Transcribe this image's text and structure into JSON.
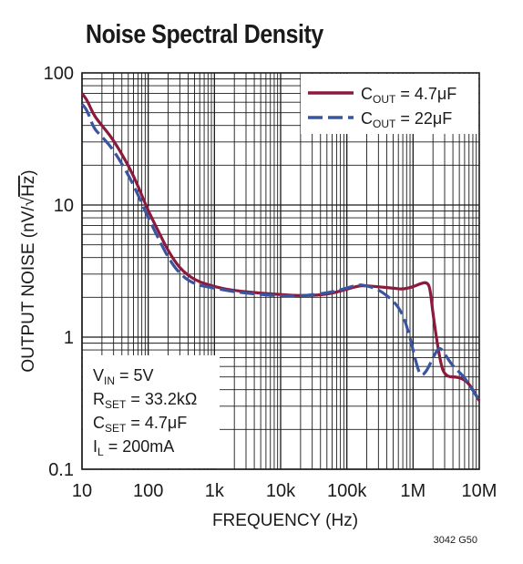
{
  "chart_data": {
    "type": "line",
    "title": "Noise Spectral Density",
    "xlabel": "FREQUENCY (Hz)",
    "ylabel_prefix": "OUTPUT NOISE (nV/",
    "ylabel_radicand": "Hz",
    "ylabel_suffix": ")",
    "x_scale": "log",
    "y_scale": "log",
    "xlim": [
      10,
      10000000
    ],
    "ylim": [
      0.1,
      100
    ],
    "grid": true,
    "x_ticks": [
      {
        "value": 10,
        "label": "10"
      },
      {
        "value": 100,
        "label": "100"
      },
      {
        "value": 1000,
        "label": "1k"
      },
      {
        "value": 10000,
        "label": "10k"
      },
      {
        "value": 100000,
        "label": "100k"
      },
      {
        "value": 1000000,
        "label": "1M"
      },
      {
        "value": 10000000,
        "label": "10M"
      }
    ],
    "y_ticks": [
      {
        "value": 0.1,
        "label": "0.1"
      },
      {
        "value": 1,
        "label": "1"
      },
      {
        "value": 10,
        "label": "10"
      },
      {
        "value": 100,
        "label": "100"
      }
    ],
    "legend_position": "top-right",
    "series": [
      {
        "legend_main": "C",
        "legend_sub": "OUT",
        "legend_rest": " = 4.7μF",
        "color": "#8b1a3c",
        "dash": "solid",
        "points": [
          [
            10,
            70
          ],
          [
            12,
            62
          ],
          [
            15,
            48
          ],
          [
            20,
            40
          ],
          [
            30,
            31
          ],
          [
            50,
            20
          ],
          [
            70,
            14
          ],
          [
            100,
            9.0
          ],
          [
            150,
            6.0
          ],
          [
            200,
            4.5
          ],
          [
            300,
            3.3
          ],
          [
            500,
            2.7
          ],
          [
            1000,
            2.4
          ],
          [
            2000,
            2.25
          ],
          [
            5000,
            2.15
          ],
          [
            10000,
            2.1
          ],
          [
            20000,
            2.05
          ],
          [
            50000,
            2.1
          ],
          [
            100000,
            2.3
          ],
          [
            150000,
            2.45
          ],
          [
            200000,
            2.45
          ],
          [
            300000,
            2.4
          ],
          [
            500000,
            2.35
          ],
          [
            700000,
            2.3
          ],
          [
            1000000,
            2.4
          ],
          [
            1300000,
            2.55
          ],
          [
            1600000,
            2.6
          ],
          [
            1800000,
            2.4
          ],
          [
            2000000,
            1.5
          ],
          [
            2500000,
            0.7
          ],
          [
            3000000,
            0.5
          ],
          [
            5000000,
            0.5
          ],
          [
            7000000,
            0.45
          ],
          [
            10000000,
            0.33
          ]
        ]
      },
      {
        "legend_main": "C",
        "legend_sub": "OUT",
        "legend_rest": " = 22μF",
        "color": "#3a559f",
        "dash": "dashed",
        "points": [
          [
            10,
            58
          ],
          [
            12,
            52
          ],
          [
            15,
            38
          ],
          [
            20,
            33
          ],
          [
            30,
            26
          ],
          [
            50,
            17
          ],
          [
            70,
            12
          ],
          [
            100,
            8.0
          ],
          [
            150,
            5.3
          ],
          [
            200,
            4.0
          ],
          [
            300,
            3.0
          ],
          [
            500,
            2.5
          ],
          [
            1000,
            2.35
          ],
          [
            2000,
            2.2
          ],
          [
            5000,
            2.1
          ],
          [
            10000,
            2.05
          ],
          [
            20000,
            2.05
          ],
          [
            50000,
            2.15
          ],
          [
            100000,
            2.35
          ],
          [
            150000,
            2.5
          ],
          [
            200000,
            2.45
          ],
          [
            300000,
            2.3
          ],
          [
            500000,
            1.9
          ],
          [
            700000,
            1.5
          ],
          [
            900000,
            1.0
          ],
          [
            1100000,
            0.65
          ],
          [
            1300000,
            0.5
          ],
          [
            1600000,
            0.55
          ],
          [
            2000000,
            0.7
          ],
          [
            2500000,
            0.85
          ],
          [
            3000000,
            0.75
          ],
          [
            4000000,
            0.6
          ],
          [
            6000000,
            0.5
          ],
          [
            10000000,
            0.33
          ]
        ]
      }
    ],
    "conditions": [
      {
        "main": "V",
        "sub": "IN",
        "rest": " = 5V"
      },
      {
        "main": "R",
        "sub": "SET",
        "rest": " = 33.2kΩ"
      },
      {
        "main": "C",
        "sub": "SET",
        "rest": " = 4.7μF"
      },
      {
        "main": "I",
        "sub": "L",
        "rest": " = 200mA"
      }
    ],
    "figure_id": "3042 G50"
  }
}
